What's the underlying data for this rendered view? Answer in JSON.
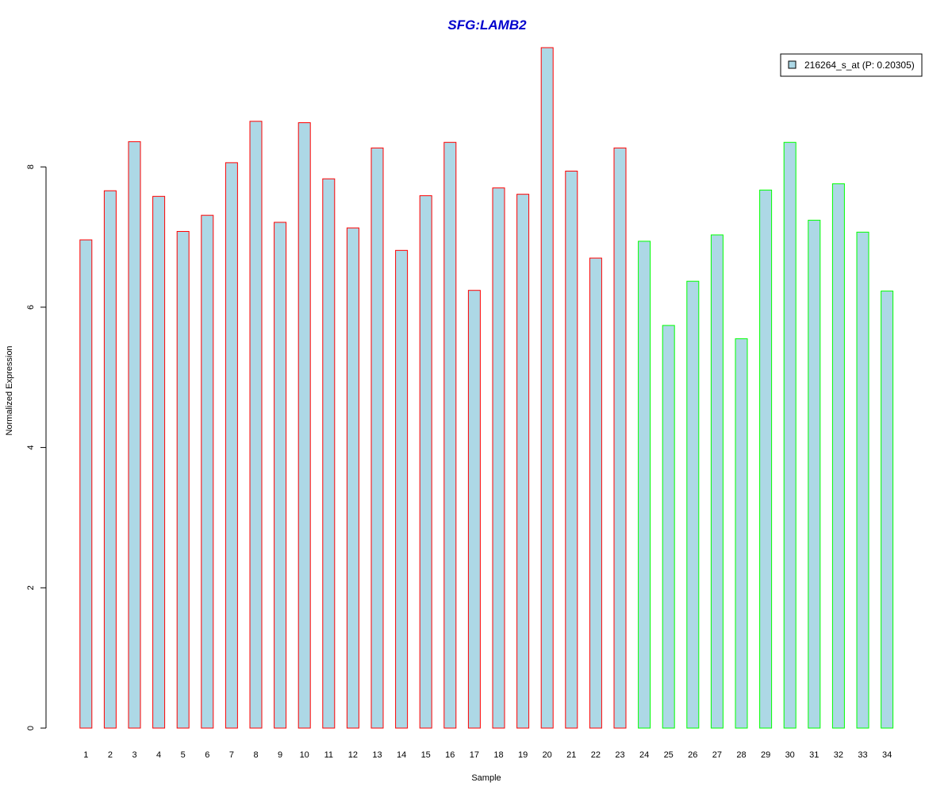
{
  "chart_data": {
    "type": "bar",
    "title": "SFG:LAMB2",
    "xlabel": "Sample",
    "ylabel": "Normalized Expression",
    "ylim": [
      0,
      9.7
    ],
    "yticks": [
      0,
      2,
      4,
      6,
      8
    ],
    "categories": [
      "1",
      "2",
      "3",
      "4",
      "5",
      "6",
      "7",
      "8",
      "9",
      "10",
      "11",
      "12",
      "13",
      "14",
      "15",
      "16",
      "17",
      "18",
      "19",
      "20",
      "21",
      "22",
      "23",
      "24",
      "25",
      "26",
      "27",
      "28",
      "29",
      "30",
      "31",
      "32",
      "33",
      "34"
    ],
    "values": [
      6.96,
      7.66,
      8.36,
      7.58,
      7.08,
      7.31,
      8.06,
      8.65,
      7.21,
      8.63,
      7.83,
      7.13,
      8.27,
      6.81,
      7.59,
      8.35,
      6.24,
      7.7,
      7.61,
      9.7,
      7.94,
      6.7,
      8.27,
      6.94,
      5.74,
      6.37,
      7.03,
      5.55,
      7.67,
      8.35,
      7.24,
      7.76,
      7.07,
      6.23
    ],
    "groups": [
      "red",
      "red",
      "red",
      "red",
      "red",
      "red",
      "red",
      "red",
      "red",
      "red",
      "red",
      "red",
      "red",
      "red",
      "red",
      "red",
      "red",
      "red",
      "red",
      "red",
      "red",
      "red",
      "red",
      "green",
      "green",
      "green",
      "green",
      "green",
      "green",
      "green",
      "green",
      "green",
      "green",
      "green"
    ],
    "legend": {
      "label": "216264_s_at (P: 0.20305)",
      "position": "top-right"
    },
    "colors": {
      "fill": "#add8e6",
      "border_red": "#ff0000",
      "border_green": "#00ff00",
      "title": "#0000cd"
    },
    "grid": false
  }
}
